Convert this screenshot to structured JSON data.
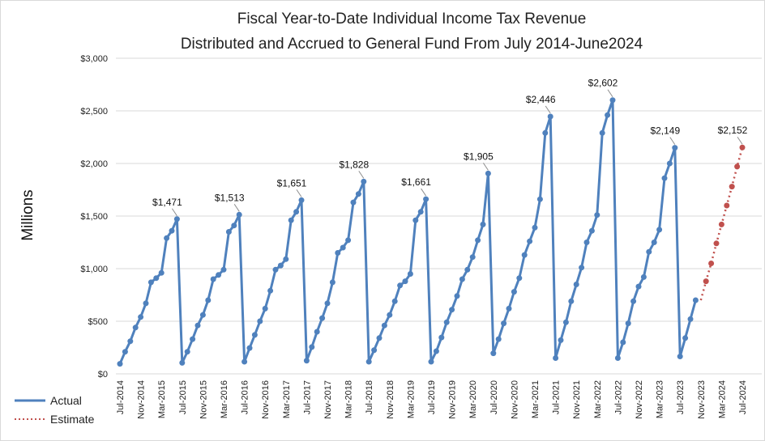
{
  "chart_data": {
    "type": "line",
    "title": "Fiscal Year-to-Date Individual Income Tax Revenue",
    "subtitle": "Distributed  and Accrued to General Fund From July 2014-June2024",
    "ylabel": "Millions",
    "ylim": [
      0,
      3000
    ],
    "yticks": [
      "$0",
      "$500",
      "$1,000",
      "$1,500",
      "$2,000",
      "$2,500",
      "$3,000"
    ],
    "xtick_labels": [
      "Jul-2014",
      "Nov-2014",
      "Mar-2015",
      "Jul-2015",
      "Nov-2015",
      "Mar-2016",
      "Jul-2016",
      "Nov-2016",
      "Mar-2017",
      "Jul-2017",
      "Nov-2017",
      "Mar-2018",
      "Jul-2018",
      "Nov-2018",
      "Mar-2019",
      "Jul-2019",
      "Nov-2019",
      "Mar-2020",
      "Jul-2020",
      "Nov-2020",
      "Mar-2021",
      "Jul-2021",
      "Nov-2021",
      "Mar-2022",
      "Jul-2022",
      "Nov-2022",
      "Mar-2023",
      "Jul-2023",
      "Nov-2023",
      "Mar-2024",
      "Jul-2024"
    ],
    "grid": "horizontal",
    "legend_position": "bottom-left",
    "series": [
      {
        "name": "Actual",
        "color": "#4F81BD",
        "style": "solid",
        "values": [
          95,
          210,
          310,
          440,
          540,
          670,
          870,
          910,
          960,
          1290,
          1360,
          1471,
          105,
          210,
          330,
          460,
          560,
          700,
          900,
          940,
          990,
          1350,
          1410,
          1513,
          115,
          245,
          370,
          500,
          620,
          790,
          990,
          1030,
          1090,
          1460,
          1540,
          1651,
          125,
          255,
          400,
          530,
          670,
          870,
          1150,
          1200,
          1270,
          1630,
          1710,
          1828,
          115,
          225,
          340,
          460,
          560,
          690,
          840,
          880,
          950,
          1460,
          1540,
          1661,
          115,
          215,
          345,
          490,
          610,
          740,
          900,
          990,
          1110,
          1270,
          1420,
          1905,
          195,
          330,
          480,
          620,
          780,
          910,
          1130,
          1260,
          1390,
          1660,
          2290,
          2446,
          150,
          320,
          490,
          690,
          850,
          1010,
          1250,
          1360,
          1510,
          2290,
          2460,
          2602,
          150,
          300,
          480,
          690,
          830,
          920,
          1160,
          1250,
          1370,
          1860,
          2000,
          2149,
          165,
          340,
          520,
          700
        ]
      },
      {
        "name": "Estimate",
        "color": "#C0504D",
        "style": "dotted",
        "start_index": 112,
        "values": [
          700,
          880,
          1050,
          1240,
          1420,
          1600,
          1780,
          1970,
          2152
        ]
      }
    ],
    "annotations": [
      {
        "index": 11,
        "text": "$1,471"
      },
      {
        "index": 23,
        "text": "$1,513"
      },
      {
        "index": 35,
        "text": "$1,651"
      },
      {
        "index": 47,
        "text": "$1,828"
      },
      {
        "index": 59,
        "text": "$1,661"
      },
      {
        "index": 71,
        "text": "$1,905"
      },
      {
        "index": 83,
        "text": "$2,446"
      },
      {
        "index": 95,
        "text": "$2,602"
      },
      {
        "index": 107,
        "text": "$2,149"
      },
      {
        "index": 120,
        "text": "$2,152"
      }
    ]
  }
}
